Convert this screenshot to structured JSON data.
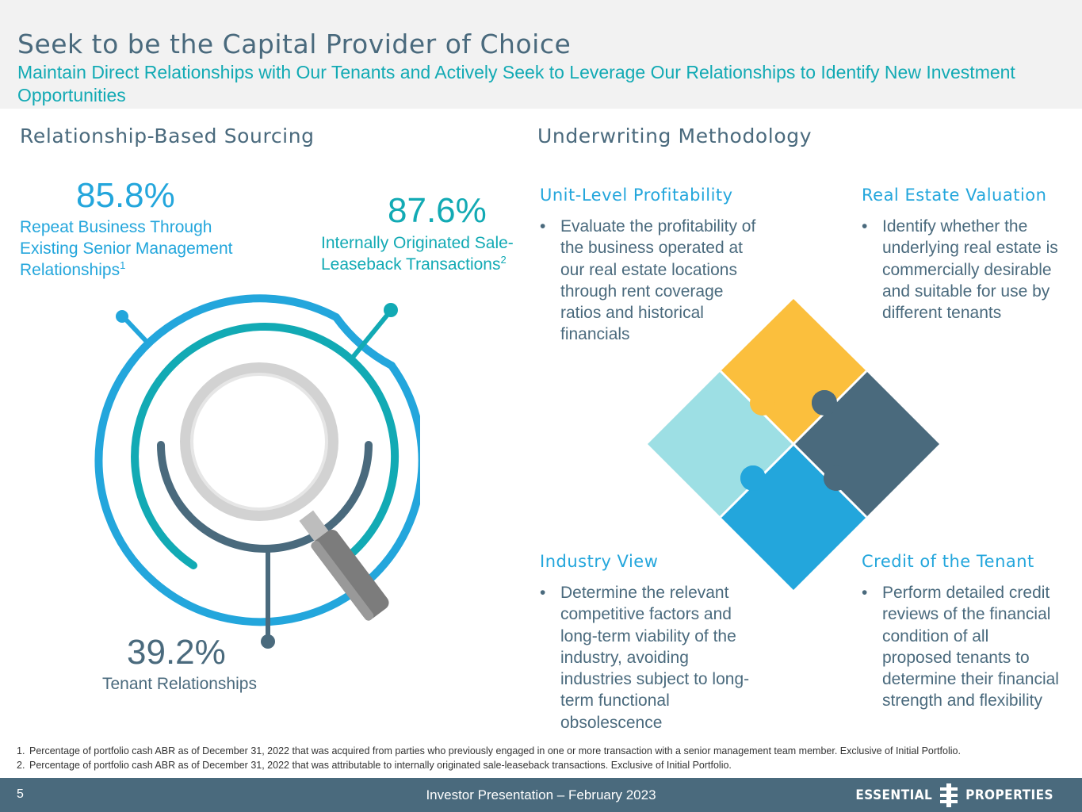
{
  "header": {
    "title": "Seek to be the Capital Provider of Choice",
    "subtitle": "Maintain Direct Relationships with Our Tenants and Actively Seek to Leverage Our Relationships to Identify New Investment Opportunities"
  },
  "left": {
    "section_title": "Relationship-Based Sourcing",
    "stats": [
      {
        "value": "85.8%",
        "label": "Repeat Business Through Existing Senior Management Relationships",
        "footnote_ref": "1"
      },
      {
        "value": "87.6%",
        "label": "Internally Originated Sale-Leaseback Transactions",
        "footnote_ref": "2"
      },
      {
        "value": "39.2%",
        "label": "Tenant Relationships"
      }
    ]
  },
  "right": {
    "section_title": "Underwriting Methodology",
    "quadrants": [
      {
        "title": "Unit-Level Profitability",
        "bullet": "Evaluate the profitability of the business operated at our real estate locations through rent coverage ratios and historical financials"
      },
      {
        "title": "Real Estate Valuation",
        "bullet": "Identify whether the underlying real estate is commercially desirable and suitable for use by different tenants"
      },
      {
        "title": "Industry View",
        "bullet": "Determine the relevant competitive factors and long-term viability of the industry, avoiding industries subject to long-term functional obsolescence"
      },
      {
        "title": "Credit of the Tenant",
        "bullet": "Perform detailed credit reviews of the financial condition of all proposed tenants to determine their financial strength and flexibility"
      }
    ]
  },
  "footnotes": [
    {
      "num": "1.",
      "text": "Percentage of portfolio cash ABR as of December 31, 2022 that was acquired from parties who previously engaged in one or more transaction with a senior management team member. Exclusive of Initial Portfolio."
    },
    {
      "num": "2.",
      "text": "Percentage of portfolio cash ABR as of December 31, 2022 that was attributable to internally originated sale-leaseback transactions. Exclusive of Initial Portfolio."
    }
  ],
  "footer": {
    "page_number": "5",
    "center_text": "Investor Presentation – February 2023",
    "logo_left": "ESSENTIAL",
    "logo_right": "PROPERTIES"
  },
  "colors": {
    "navy": "#4a6a7d",
    "teal": "#12aab4",
    "blue": "#23a6dc",
    "yellow": "#fbbf3d",
    "light_teal": "#9ddfe4",
    "dark_slate": "#4a6a7d"
  },
  "bullet_glyph": "•"
}
